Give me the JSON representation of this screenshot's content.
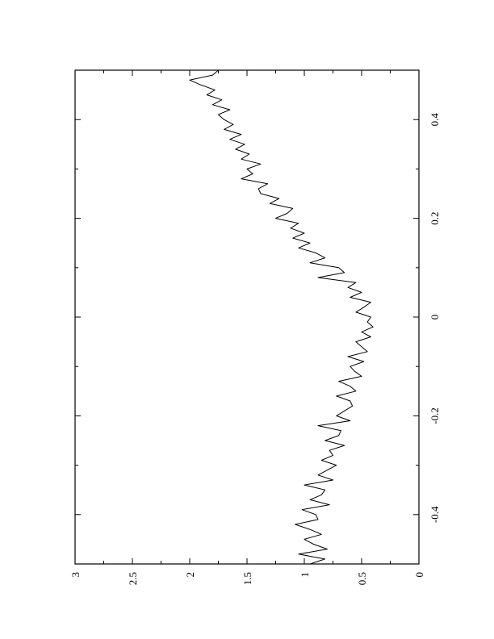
{
  "chart_data": {
    "type": "line",
    "orientation": "rotated-90",
    "title": "",
    "xlabel": "",
    "ylabel": "",
    "xlim": [
      -0.5,
      0.5
    ],
    "ylim": [
      0,
      3
    ],
    "x_ticks": [
      -0.4,
      -0.2,
      0,
      0.2,
      0.4
    ],
    "x_tick_labels": [
      "-0.4",
      "-0.2",
      "0",
      "0.2",
      "0.4"
    ],
    "y_ticks": [
      0,
      0.5,
      1,
      1.5,
      2,
      2.5,
      3
    ],
    "y_tick_labels": [
      "0",
      "0.5",
      "1",
      "1.5",
      "2",
      "2.5",
      "3"
    ],
    "grid": false,
    "line_color": "#000000",
    "series": [
      {
        "x": [
          -0.5,
          -0.49,
          -0.48,
          -0.47,
          -0.46,
          -0.45,
          -0.44,
          -0.43,
          -0.42,
          -0.41,
          -0.4,
          -0.39,
          -0.38,
          -0.37,
          -0.36,
          -0.35,
          -0.34,
          -0.33,
          -0.32,
          -0.31,
          -0.3,
          -0.29,
          -0.28,
          -0.27,
          -0.26,
          -0.25,
          -0.24,
          -0.23,
          -0.22,
          -0.21,
          -0.2,
          -0.19,
          -0.18,
          -0.17,
          -0.16,
          -0.15,
          -0.14,
          -0.13,
          -0.12,
          -0.11,
          -0.1,
          -0.09,
          -0.08,
          -0.07,
          -0.06,
          -0.05,
          -0.04,
          -0.03,
          -0.02,
          -0.01,
          0,
          0.01,
          0.02,
          0.03,
          0.04,
          0.05,
          0.06,
          0.07,
          0.08,
          0.09,
          0.1,
          0.11,
          0.12,
          0.13,
          0.14,
          0.15,
          0.16,
          0.17,
          0.18,
          0.19,
          0.2,
          0.21,
          0.22,
          0.23,
          0.24,
          0.25,
          0.26,
          0.27,
          0.28,
          0.29,
          0.3,
          0.31,
          0.32,
          0.33,
          0.34,
          0.35,
          0.36,
          0.37,
          0.38,
          0.39,
          0.4,
          0.41,
          0.42,
          0.43,
          0.44,
          0.45,
          0.46,
          0.47,
          0.48,
          0.49,
          0.5
        ],
        "y": [
          0.95,
          0.82,
          1.05,
          0.8,
          0.92,
          1.0,
          0.85,
          0.95,
          1.08,
          0.88,
          0.9,
          1.02,
          0.78,
          0.95,
          0.85,
          0.82,
          1.0,
          0.75,
          0.88,
          0.8,
          0.72,
          0.85,
          0.75,
          0.78,
          0.65,
          0.82,
          0.7,
          0.68,
          0.88,
          0.6,
          0.72,
          0.65,
          0.58,
          0.6,
          0.72,
          0.55,
          0.6,
          0.7,
          0.5,
          0.56,
          0.6,
          0.48,
          0.62,
          0.45,
          0.5,
          0.55,
          0.42,
          0.5,
          0.4,
          0.45,
          0.42,
          0.55,
          0.48,
          0.42,
          0.6,
          0.5,
          0.62,
          0.55,
          0.88,
          0.65,
          0.7,
          0.95,
          0.82,
          0.9,
          1.05,
          0.95,
          1.1,
          1.0,
          1.12,
          1.05,
          1.25,
          1.15,
          1.1,
          1.3,
          1.22,
          1.38,
          1.4,
          1.32,
          1.55,
          1.45,
          1.5,
          1.38,
          1.55,
          1.48,
          1.6,
          1.52,
          1.65,
          1.55,
          1.7,
          1.62,
          1.7,
          1.75,
          1.65,
          1.8,
          1.72,
          1.85,
          1.78,
          1.9,
          2.0,
          1.8,
          1.75
        ]
      }
    ]
  }
}
